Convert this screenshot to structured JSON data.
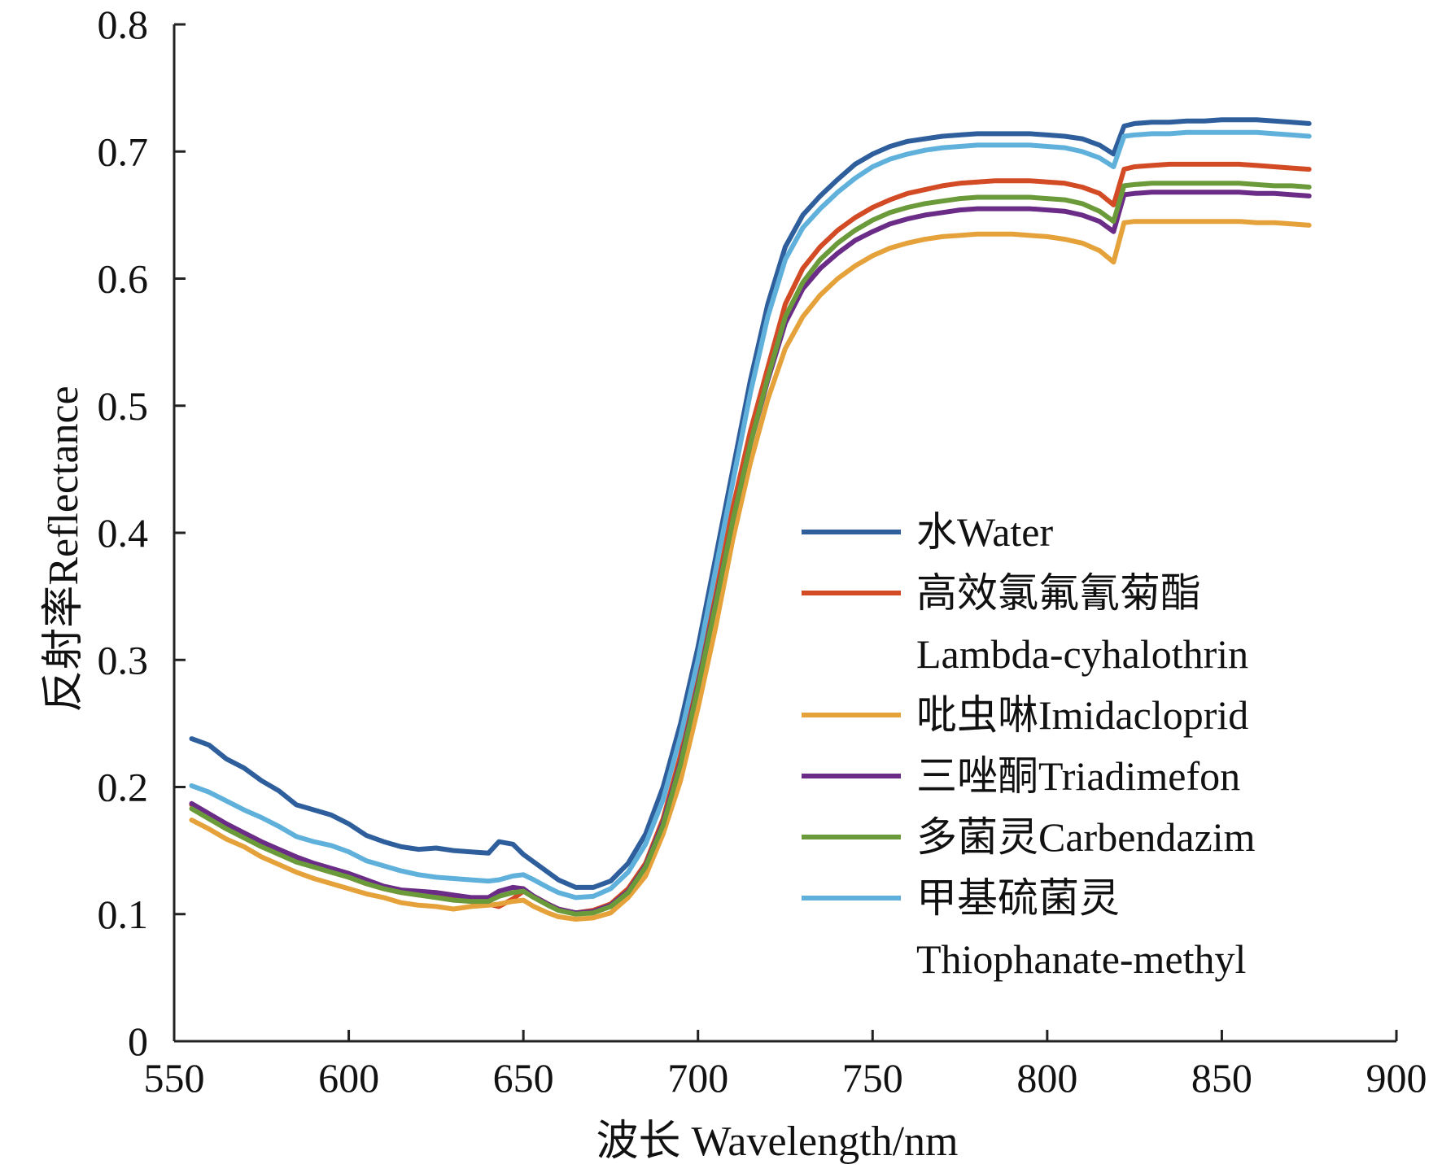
{
  "chart_data": {
    "type": "line",
    "title": "",
    "xlabel": "波长 Wavelength/nm",
    "ylabel": "反射率Reflectance",
    "xlim": [
      550,
      900
    ],
    "ylim": [
      0,
      0.8
    ],
    "xticks": [
      "550",
      "600",
      "650",
      "700",
      "750",
      "800",
      "850",
      "900"
    ],
    "yticks": [
      "0",
      "0.1",
      "0.2",
      "0.3",
      "0.4",
      "0.5",
      "0.6",
      "0.7",
      "0.8"
    ],
    "legend_position": "right",
    "x": [
      555,
      560,
      565,
      570,
      575,
      580,
      585,
      590,
      595,
      600,
      605,
      610,
      615,
      620,
      625,
      630,
      635,
      640,
      643,
      647,
      650,
      653,
      657,
      660,
      665,
      670,
      675,
      680,
      685,
      690,
      695,
      700,
      705,
      710,
      715,
      720,
      725,
      730,
      735,
      740,
      745,
      750,
      755,
      760,
      765,
      770,
      775,
      780,
      785,
      790,
      795,
      800,
      805,
      810,
      815,
      819,
      822,
      825,
      830,
      835,
      840,
      845,
      850,
      855,
      860,
      865,
      870,
      875
    ],
    "series": [
      {
        "name": "水Water",
        "color": "#2e5f9c",
        "values": [
          0.238,
          0.233,
          0.222,
          0.215,
          0.205,
          0.197,
          0.186,
          0.182,
          0.178,
          0.171,
          0.162,
          0.157,
          0.153,
          0.151,
          0.152,
          0.15,
          0.149,
          0.148,
          0.157,
          0.155,
          0.147,
          0.141,
          0.133,
          0.127,
          0.121,
          0.121,
          0.126,
          0.14,
          0.163,
          0.2,
          0.25,
          0.31,
          0.38,
          0.45,
          0.52,
          0.58,
          0.625,
          0.65,
          0.665,
          0.678,
          0.69,
          0.698,
          0.704,
          0.708,
          0.71,
          0.712,
          0.713,
          0.714,
          0.714,
          0.714,
          0.714,
          0.713,
          0.712,
          0.71,
          0.705,
          0.698,
          0.72,
          0.722,
          0.723,
          0.723,
          0.724,
          0.724,
          0.725,
          0.725,
          0.725,
          0.724,
          0.723,
          0.722
        ]
      },
      {
        "name": "高效氯氟氰菊酯",
        "name2": "Lambda-cyhalothrin",
        "color": "#d24b25",
        "values": [
          0.186,
          0.178,
          0.17,
          0.163,
          0.155,
          0.148,
          0.142,
          0.137,
          0.133,
          0.129,
          0.124,
          0.12,
          0.117,
          0.115,
          0.114,
          0.112,
          0.11,
          0.108,
          0.106,
          0.112,
          0.118,
          0.114,
          0.108,
          0.104,
          0.101,
          0.103,
          0.108,
          0.12,
          0.14,
          0.175,
          0.225,
          0.285,
          0.35,
          0.42,
          0.48,
          0.53,
          0.58,
          0.608,
          0.625,
          0.638,
          0.648,
          0.656,
          0.662,
          0.667,
          0.67,
          0.673,
          0.675,
          0.676,
          0.677,
          0.677,
          0.677,
          0.676,
          0.675,
          0.672,
          0.667,
          0.658,
          0.686,
          0.688,
          0.689,
          0.69,
          0.69,
          0.69,
          0.69,
          0.69,
          0.689,
          0.688,
          0.687,
          0.686
        ]
      },
      {
        "name": "吡虫啉Imidacloprid",
        "color": "#e5a23a",
        "values": [
          0.174,
          0.167,
          0.159,
          0.153,
          0.145,
          0.139,
          0.133,
          0.128,
          0.124,
          0.12,
          0.116,
          0.113,
          0.109,
          0.107,
          0.106,
          0.104,
          0.106,
          0.107,
          0.108,
          0.11,
          0.111,
          0.106,
          0.101,
          0.098,
          0.096,
          0.097,
          0.101,
          0.113,
          0.13,
          0.163,
          0.205,
          0.262,
          0.325,
          0.395,
          0.455,
          0.505,
          0.545,
          0.57,
          0.587,
          0.6,
          0.61,
          0.618,
          0.624,
          0.628,
          0.631,
          0.633,
          0.634,
          0.635,
          0.635,
          0.635,
          0.634,
          0.633,
          0.631,
          0.628,
          0.622,
          0.613,
          0.644,
          0.645,
          0.645,
          0.645,
          0.645,
          0.645,
          0.645,
          0.645,
          0.644,
          0.644,
          0.643,
          0.642
        ]
      },
      {
        "name": "三唑酮Triadimefon",
        "color": "#6a2c86",
        "values": [
          0.187,
          0.179,
          0.171,
          0.164,
          0.157,
          0.151,
          0.145,
          0.14,
          0.136,
          0.132,
          0.127,
          0.122,
          0.119,
          0.118,
          0.117,
          0.115,
          0.113,
          0.113,
          0.118,
          0.121,
          0.12,
          0.114,
          0.108,
          0.104,
          0.101,
          0.102,
          0.107,
          0.118,
          0.138,
          0.172,
          0.22,
          0.28,
          0.345,
          0.41,
          0.47,
          0.52,
          0.565,
          0.592,
          0.608,
          0.62,
          0.63,
          0.637,
          0.643,
          0.647,
          0.65,
          0.652,
          0.654,
          0.655,
          0.655,
          0.655,
          0.655,
          0.654,
          0.653,
          0.65,
          0.645,
          0.637,
          0.666,
          0.667,
          0.668,
          0.668,
          0.668,
          0.668,
          0.668,
          0.668,
          0.667,
          0.667,
          0.666,
          0.665
        ]
      },
      {
        "name": "多菌灵Carbendazim",
        "color": "#6a9a3a",
        "values": [
          0.183,
          0.175,
          0.167,
          0.16,
          0.153,
          0.147,
          0.141,
          0.137,
          0.133,
          0.129,
          0.124,
          0.12,
          0.117,
          0.115,
          0.113,
          0.111,
          0.11,
          0.11,
          0.114,
          0.117,
          0.118,
          0.113,
          0.107,
          0.103,
          0.1,
          0.101,
          0.106,
          0.117,
          0.137,
          0.17,
          0.218,
          0.278,
          0.343,
          0.41,
          0.47,
          0.522,
          0.57,
          0.597,
          0.615,
          0.628,
          0.638,
          0.646,
          0.652,
          0.656,
          0.659,
          0.661,
          0.663,
          0.664,
          0.664,
          0.664,
          0.664,
          0.663,
          0.662,
          0.659,
          0.653,
          0.645,
          0.673,
          0.674,
          0.675,
          0.675,
          0.675,
          0.675,
          0.675,
          0.675,
          0.674,
          0.673,
          0.673,
          0.672
        ]
      },
      {
        "name": "甲基硫菌灵",
        "name2": "Thiophanate-methyl",
        "color": "#5fb1db",
        "values": [
          0.201,
          0.196,
          0.189,
          0.182,
          0.176,
          0.169,
          0.161,
          0.157,
          0.154,
          0.149,
          0.142,
          0.138,
          0.134,
          0.131,
          0.129,
          0.128,
          0.127,
          0.126,
          0.127,
          0.13,
          0.131,
          0.127,
          0.121,
          0.117,
          0.113,
          0.114,
          0.12,
          0.133,
          0.155,
          0.19,
          0.24,
          0.3,
          0.37,
          0.44,
          0.51,
          0.57,
          0.615,
          0.64,
          0.655,
          0.668,
          0.679,
          0.688,
          0.694,
          0.698,
          0.701,
          0.703,
          0.704,
          0.705,
          0.705,
          0.705,
          0.705,
          0.704,
          0.703,
          0.7,
          0.695,
          0.688,
          0.712,
          0.713,
          0.714,
          0.714,
          0.715,
          0.715,
          0.715,
          0.715,
          0.715,
          0.714,
          0.713,
          0.712
        ]
      }
    ]
  }
}
